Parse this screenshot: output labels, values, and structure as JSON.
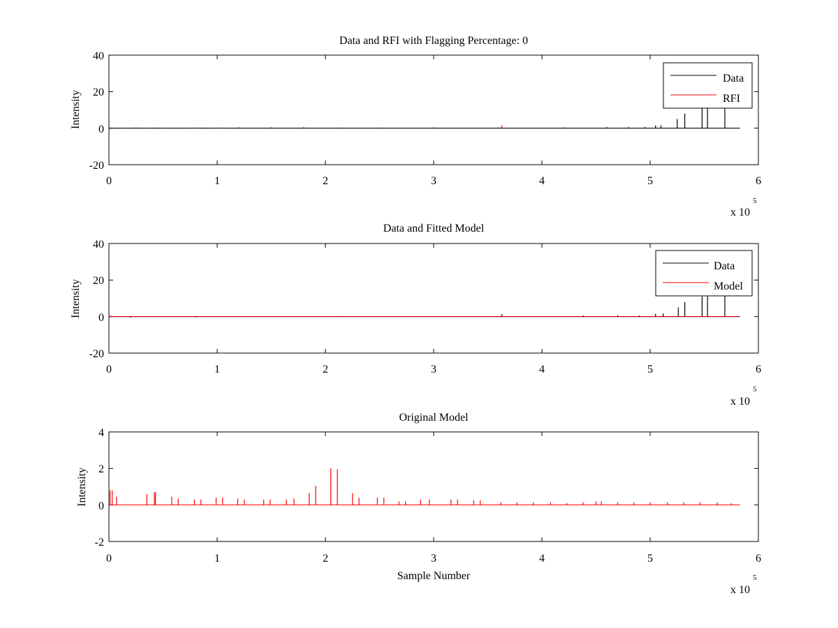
{
  "chart_data": [
    {
      "type": "line",
      "title": "Data and RFI with Flagging Percentage: 0",
      "xlabel": "",
      "ylabel": "Intensity",
      "xlim": [
        0,
        6
      ],
      "ylim": [
        -20,
        40
      ],
      "xticks": [
        "0",
        "1",
        "2",
        "3",
        "4",
        "5",
        "6"
      ],
      "yticks": [
        "-20",
        "0",
        "20",
        "40"
      ],
      "x_multiplier": {
        "base": "x 10",
        "exponent": "5"
      },
      "legend_position": "top-right",
      "colors": {
        "data": "#000000",
        "rfi": "#ff0000"
      },
      "series": [
        {
          "name": "Data",
          "color": "#000000",
          "baseline": 0,
          "x": [
            0.25,
            0.41,
            0.62,
            0.9,
            1.2,
            1.5,
            1.8,
            2.1,
            2.5,
            3.0,
            3.6,
            4.2,
            4.6,
            4.8,
            4.95,
            5.05,
            5.1,
            5.25,
            5.32,
            5.48,
            5.53,
            5.69
          ],
          "y": [
            0.4,
            0.3,
            0.3,
            0.3,
            0.4,
            0.4,
            0.5,
            0.3,
            0.3,
            0.4,
            0.4,
            0.4,
            0.6,
            0.6,
            0.6,
            1.5,
            1.6,
            5.0,
            8.0,
            11.0,
            11.0,
            27.0
          ]
        },
        {
          "name": "RFI",
          "color": "#ff0000",
          "baseline": 0,
          "x": [
            0.8,
            1.05,
            3.63
          ],
          "y": [
            0.4,
            0.4,
            1.5
          ]
        }
      ]
    },
    {
      "type": "line",
      "title": "Data and Fitted Model",
      "xlabel": "",
      "ylabel": "Intensity",
      "xlim": [
        0,
        6
      ],
      "ylim": [
        -20,
        40
      ],
      "xticks": [
        "0",
        "1",
        "2",
        "3",
        "4",
        "5",
        "6"
      ],
      "yticks": [
        "-20",
        "0",
        "20",
        "40"
      ],
      "x_multiplier": {
        "base": "x 10",
        "exponent": "5"
      },
      "legend_position": "top-right",
      "colors": {
        "data": "#000000",
        "model": "#ff0000"
      },
      "series": [
        {
          "name": "Data",
          "color": "#000000",
          "baseline": 0,
          "x": [
            0.2,
            0.8,
            2.12,
            3.63,
            4.38,
            4.7,
            4.9,
            5.05,
            5.12,
            5.26,
            5.32,
            5.48,
            5.53,
            5.69
          ],
          "y": [
            -0.5,
            -0.4,
            0.3,
            1.3,
            0.6,
            0.7,
            0.6,
            1.5,
            1.7,
            5.0,
            8.0,
            11.0,
            11.0,
            27.0
          ]
        },
        {
          "name": "Model",
          "color": "#ff0000",
          "baseline": 0,
          "x": [
            0.01,
            0.02
          ],
          "y": [
            0.5,
            0.4
          ]
        }
      ]
    },
    {
      "type": "line",
      "title": "Original Model",
      "xlabel": "Sample Number",
      "ylabel": "Intensity",
      "xlim": [
        0,
        6
      ],
      "ylim": [
        -2,
        4
      ],
      "xticks": [
        "0",
        "1",
        "2",
        "3",
        "4",
        "5",
        "6"
      ],
      "yticks": [
        "-2",
        "0",
        "2",
        "4"
      ],
      "x_multiplier": {
        "base": "x 10",
        "exponent": "5"
      },
      "colors": {
        "model": "#ff0000"
      },
      "series": [
        {
          "name": "",
          "color": "#ff0000",
          "baseline": 0,
          "x": [
            0.01,
            0.03,
            0.07,
            0.35,
            0.42,
            0.43,
            0.58,
            0.64,
            0.79,
            0.85,
            0.99,
            1.05,
            1.19,
            1.25,
            1.43,
            1.49,
            1.64,
            1.71,
            1.85,
            1.91,
            2.05,
            2.11,
            2.25,
            2.31,
            2.48,
            2.54,
            2.68,
            2.74,
            2.88,
            2.96,
            3.16,
            3.22,
            3.37,
            3.43,
            3.62,
            3.77,
            3.92,
            4.08,
            4.23,
            4.38,
            4.5,
            4.55,
            4.7,
            4.85,
            5.0,
            5.16,
            5.31,
            5.46,
            5.62,
            5.75
          ],
          "y": [
            0.8,
            0.8,
            0.45,
            0.6,
            0.7,
            0.7,
            0.45,
            0.35,
            0.3,
            0.3,
            0.4,
            0.4,
            0.35,
            0.3,
            0.3,
            0.3,
            0.3,
            0.35,
            0.65,
            1.05,
            2.0,
            1.95,
            0.65,
            0.4,
            0.4,
            0.4,
            0.2,
            0.2,
            0.3,
            0.3,
            0.3,
            0.3,
            0.25,
            0.25,
            0.15,
            0.15,
            0.15,
            0.15,
            0.1,
            0.15,
            0.2,
            0.2,
            0.15,
            0.15,
            0.15,
            0.15,
            0.15,
            0.15,
            0.15,
            0.1
          ]
        }
      ]
    }
  ]
}
